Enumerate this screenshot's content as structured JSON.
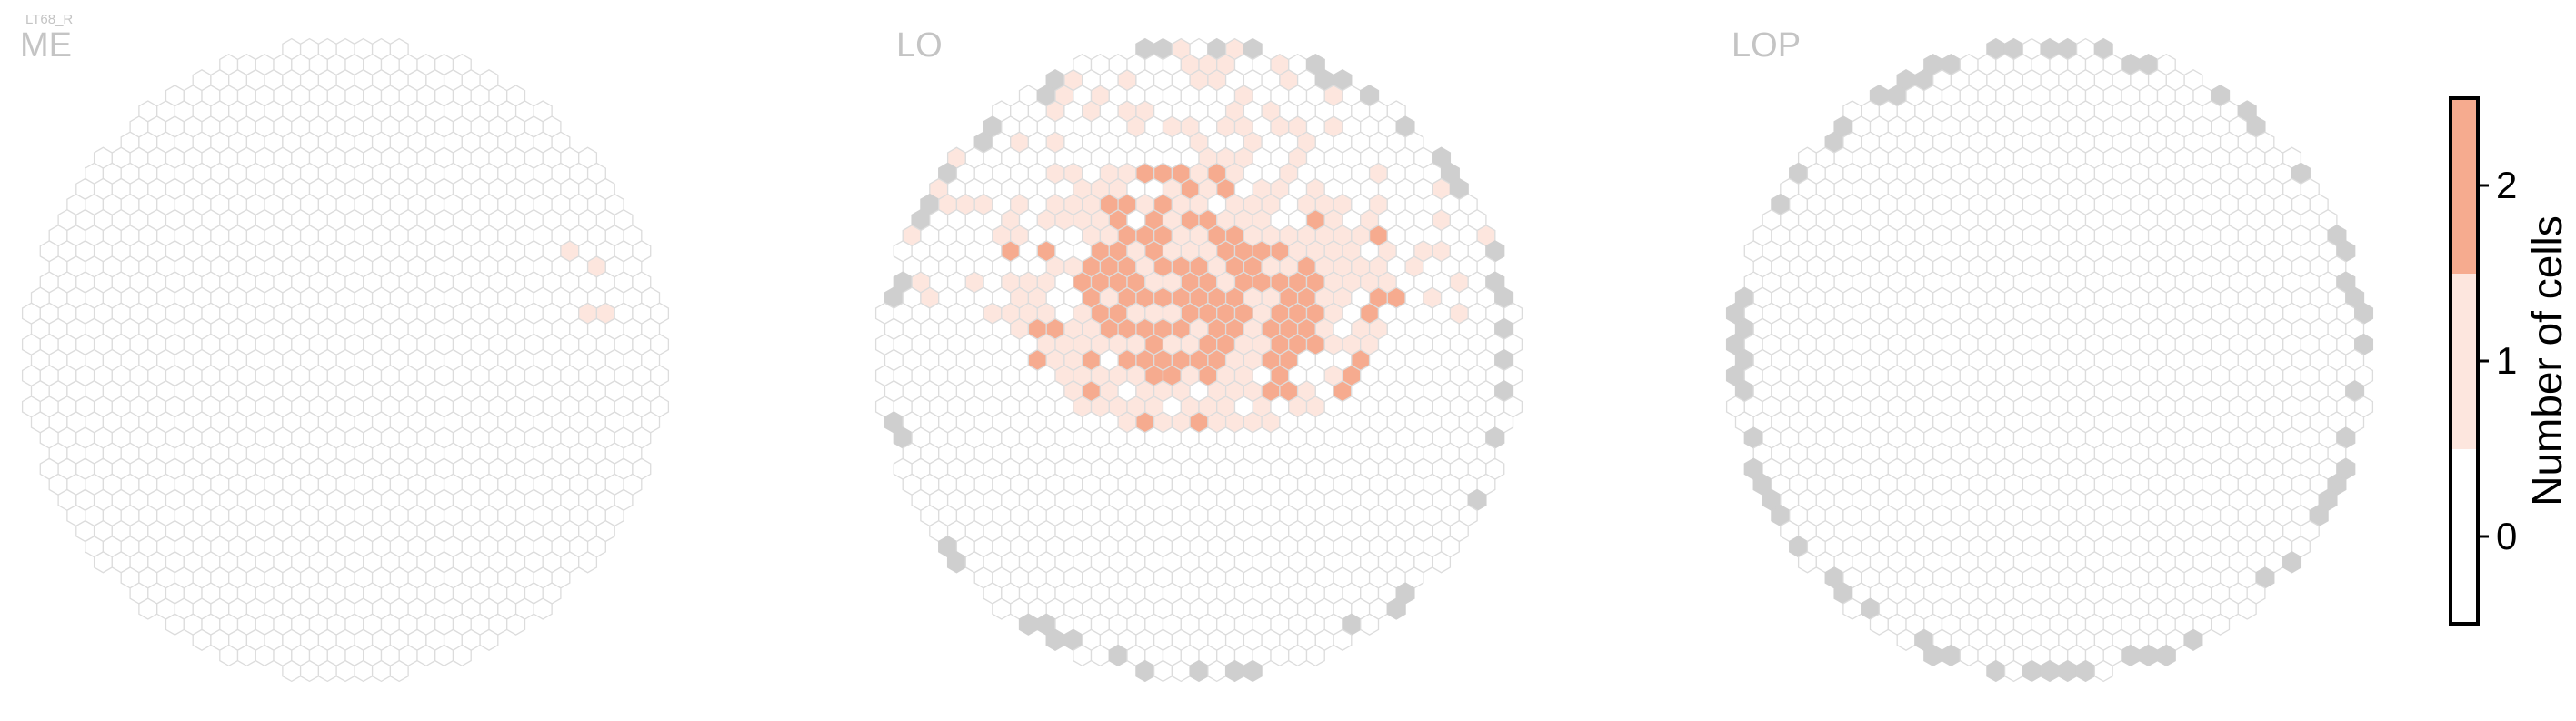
{
  "cell_type_label": "LT68_R",
  "colors": {
    "empty": "#ffffff",
    "one": "#fde6de",
    "two": "#f6ab8f",
    "border": "#dcdcdc",
    "outside": "#cfcfcf"
  },
  "chart_data": {
    "type": "heatmap",
    "description_of_values": "Number of cells per hexagonal column",
    "panels": [
      {
        "title": "ME"
      },
      {
        "title": "LO"
      },
      {
        "title": "LOP"
      }
    ],
    "colorbar": {
      "label": "Number of cells",
      "ticks": [
        0,
        1,
        2
      ],
      "range": [
        -0.5,
        2.5
      ]
    }
  }
}
